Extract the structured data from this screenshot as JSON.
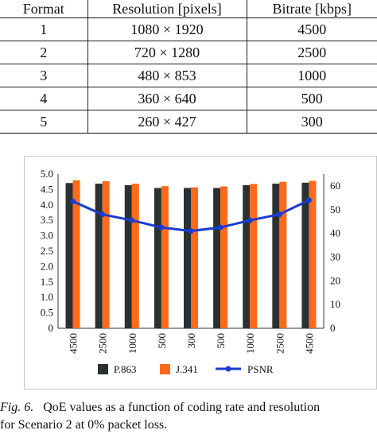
{
  "table": {
    "headers": [
      "Format",
      "Resolution [pixels]",
      "Bitrate [kbps]"
    ],
    "rows": [
      [
        "1",
        "1080 × 1920",
        "4500"
      ],
      [
        "2",
        "720 × 1280",
        "2500"
      ],
      [
        "3",
        "480 × 853",
        "1000"
      ],
      [
        "4",
        "360 × 640",
        "500"
      ],
      [
        "5",
        "260 × 427",
        "300"
      ]
    ]
  },
  "chart_data": {
    "type": "bar",
    "categories": [
      "4500",
      "2500",
      "1000",
      "500",
      "300",
      "500",
      "1000",
      "2500",
      "4500"
    ],
    "series": [
      {
        "name": "P.863",
        "type": "bar",
        "axis": "left",
        "color": "#2b3030",
        "values": [
          4.71,
          4.69,
          4.64,
          4.55,
          4.55,
          4.55,
          4.64,
          4.69,
          4.72
        ]
      },
      {
        "name": "J.341",
        "type": "bar",
        "axis": "left",
        "color": "#ff6a1a",
        "values": [
          4.8,
          4.77,
          4.69,
          4.61,
          4.57,
          4.6,
          4.68,
          4.75,
          4.78
        ]
      },
      {
        "name": "PSNR",
        "type": "line",
        "axis": "right",
        "color": "#1a3ad0",
        "values": [
          53.5,
          48.0,
          45.5,
          42.5,
          41.0,
          42.5,
          45.5,
          48.0,
          54.0
        ]
      }
    ],
    "left_ticks": [
      "0",
      "0.5",
      "1.0",
      "1.5",
      "2.0",
      "2.5",
      "3.0",
      "3.5",
      "4.0",
      "4.5",
      "5.0"
    ],
    "right_ticks": [
      "0",
      "10",
      "20",
      "30",
      "40",
      "50",
      "60"
    ],
    "ylim_left": [
      0,
      5
    ],
    "ylim_right": [
      0,
      65
    ],
    "grid": false,
    "legend_position": "bottom"
  },
  "caption": {
    "label": "Fig. 6.",
    "line1": "QoE values as a function of coding rate and resolution",
    "line2": "for Scenario 2 at 0% packet loss."
  }
}
